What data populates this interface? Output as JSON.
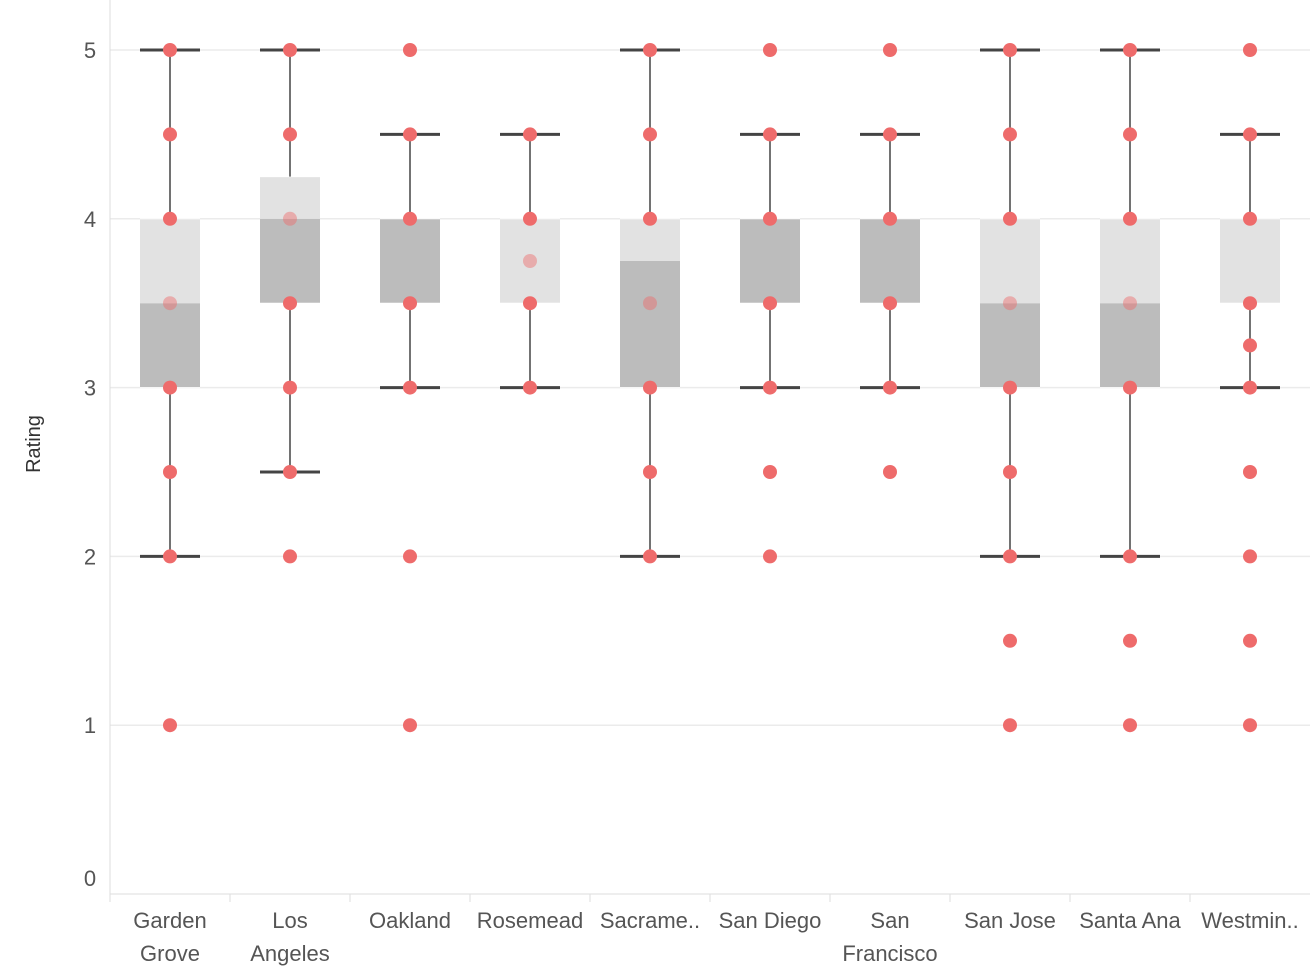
{
  "chart_data": {
    "type": "boxplot",
    "title": "",
    "xlabel": "",
    "ylabel": "Rating",
    "ylim": [
      0,
      5
    ],
    "yticks": [
      0,
      1,
      2,
      3,
      4,
      5
    ],
    "grid": "horizontal",
    "colors": {
      "point": "#ee6b6b",
      "box_lower": "#bcbcbc",
      "box_upper": "#e2e2e2",
      "whisker": "#444444",
      "grid": "#ebebeb",
      "axis": "#dddddd"
    },
    "categories": [
      {
        "label_lines": [
          "Garden",
          "Grove"
        ],
        "q1": 3,
        "median": 3.5,
        "q3": 4,
        "whisker_low": 2,
        "whisker_high": 5,
        "points": [
          1,
          2,
          2.5,
          3,
          3.5,
          4,
          4.5,
          5
        ]
      },
      {
        "label_lines": [
          "Los",
          "Angeles"
        ],
        "q1": 3.5,
        "median": 4,
        "q3": 4.25,
        "whisker_low": 2.5,
        "whisker_high": 5,
        "points": [
          2,
          2.5,
          3,
          3.5,
          4,
          4.5,
          5
        ]
      },
      {
        "label_lines": [
          "Oakland"
        ],
        "q1": 3.5,
        "median": 4,
        "q3": 4,
        "whisker_low": 3,
        "whisker_high": 4.5,
        "points": [
          1,
          2,
          3,
          3.5,
          4,
          4.5,
          5
        ]
      },
      {
        "label_lines": [
          "Rosemead"
        ],
        "q1": 3.5,
        "median": 3.5,
        "q3": 4,
        "whisker_low": 3,
        "whisker_high": 4.5,
        "points": [
          3,
          3.5,
          3.75,
          4,
          4.5
        ]
      },
      {
        "label_lines": [
          "Sacrame.."
        ],
        "q1": 3,
        "median": 3.75,
        "q3": 4,
        "whisker_low": 2,
        "whisker_high": 5,
        "points": [
          2,
          2.5,
          3,
          3.5,
          4,
          4.5,
          5
        ]
      },
      {
        "label_lines": [
          "San Diego"
        ],
        "q1": 3.5,
        "median": 4,
        "q3": 4,
        "whisker_low": 3,
        "whisker_high": 4.5,
        "points": [
          2,
          2.5,
          3,
          3.5,
          4,
          4.5,
          5
        ]
      },
      {
        "label_lines": [
          "San",
          "Francisco"
        ],
        "q1": 3.5,
        "median": 4,
        "q3": 4,
        "whisker_low": 3,
        "whisker_high": 4.5,
        "points": [
          2.5,
          3,
          3.5,
          4,
          4.5,
          5
        ]
      },
      {
        "label_lines": [
          "San Jose"
        ],
        "q1": 3,
        "median": 3.5,
        "q3": 4,
        "whisker_low": 2,
        "whisker_high": 5,
        "points": [
          1,
          1.5,
          2,
          2.5,
          3,
          3.5,
          4,
          4.5,
          5
        ]
      },
      {
        "label_lines": [
          "Santa Ana"
        ],
        "q1": 3,
        "median": 3.5,
        "q3": 4,
        "whisker_low": 2,
        "whisker_high": 5,
        "points": [
          1,
          1.5,
          2,
          3,
          3.5,
          4,
          4.5,
          5
        ]
      },
      {
        "label_lines": [
          "Westmin.."
        ],
        "q1": 3.5,
        "median": 3.5,
        "q3": 4,
        "whisker_low": 3,
        "whisker_high": 4.5,
        "points": [
          1,
          1.5,
          2,
          2.5,
          3,
          3.25,
          3.5,
          4,
          4.5,
          5
        ]
      }
    ]
  }
}
